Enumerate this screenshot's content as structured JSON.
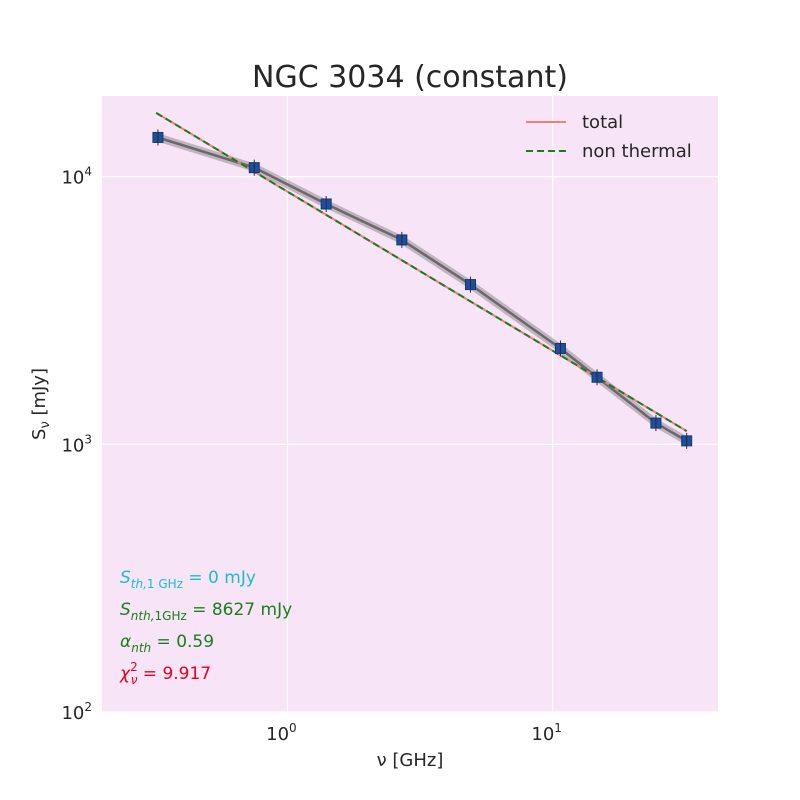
{
  "chart_data": {
    "type": "line",
    "title": "NGC 3034 (constant)",
    "xlabel": "ν [GHz]",
    "ylabel": "Sν [mJy]",
    "xscale": "log",
    "yscale": "log",
    "xlim": [
      0.2,
      42
    ],
    "ylim": [
      100,
      20000
    ],
    "grid": true,
    "legend_position": "top-right",
    "x_ticks": [
      {
        "base": "10",
        "exp": "0",
        "value": 1
      },
      {
        "base": "10",
        "exp": "1",
        "value": 10
      }
    ],
    "y_ticks": [
      {
        "base": "10",
        "exp": "2",
        "value": 100
      },
      {
        "base": "10",
        "exp": "3",
        "value": 1000
      },
      {
        "base": "10",
        "exp": "4",
        "value": 10000
      }
    ],
    "observations": {
      "x": [
        0.325,
        0.75,
        1.4,
        2.7,
        4.9,
        10.7,
        14.7,
        24.5,
        32.0
      ],
      "y": [
        14000,
        10800,
        7900,
        5800,
        3950,
        2280,
        1780,
        1200,
        1030
      ]
    },
    "series": [
      {
        "name": "total",
        "color": "#f07e7e",
        "style": "solid",
        "x": [
          0.32,
          32.0
        ],
        "y": [
          17300,
          1120
        ]
      },
      {
        "name": "non thermal",
        "color": "#1a7f1a",
        "style": "dashed",
        "x": [
          0.32,
          32.0
        ],
        "y": [
          17300,
          1120
        ]
      }
    ],
    "annotations": [
      {
        "var": "S",
        "sub_it": "th,",
        "sub_rm": "1 GHz",
        "value": " = 0 mJy",
        "color": "#17becf"
      },
      {
        "var": "S",
        "sub_it": "nth,",
        "sub_rm": "1GHz",
        "value": " = 8627 mJy",
        "color": "#1a7f1a"
      },
      {
        "var": "α",
        "sub_it": "nth",
        "sub_rm": "",
        "value": " = 0.59",
        "color": "#1a7f1a"
      },
      {
        "var": "χ",
        "sub_it": "ν",
        "sup": "2",
        "value": " = 9.917",
        "color": "#e6001a"
      }
    ],
    "colors": {
      "plot_background": "#f7e4f7",
      "band": "#7a7a7a",
      "marker": "#1f4e9e"
    }
  }
}
